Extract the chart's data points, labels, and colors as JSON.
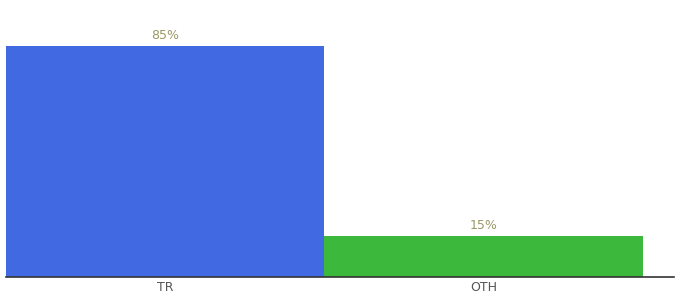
{
  "categories": [
    "TR",
    "OTH"
  ],
  "values": [
    85,
    15
  ],
  "bar_colors": [
    "#4169E1",
    "#3CB83C"
  ],
  "value_labels": [
    "85%",
    "15%"
  ],
  "label_color": "#999966",
  "background_color": "#ffffff",
  "bar_width": 0.5,
  "bar_positions": [
    0.25,
    0.75
  ],
  "xlim": [
    0.0,
    1.05
  ],
  "ylim": [
    0,
    100
  ],
  "label_fontsize": 9,
  "tick_fontsize": 9,
  "tick_color": "#555555"
}
